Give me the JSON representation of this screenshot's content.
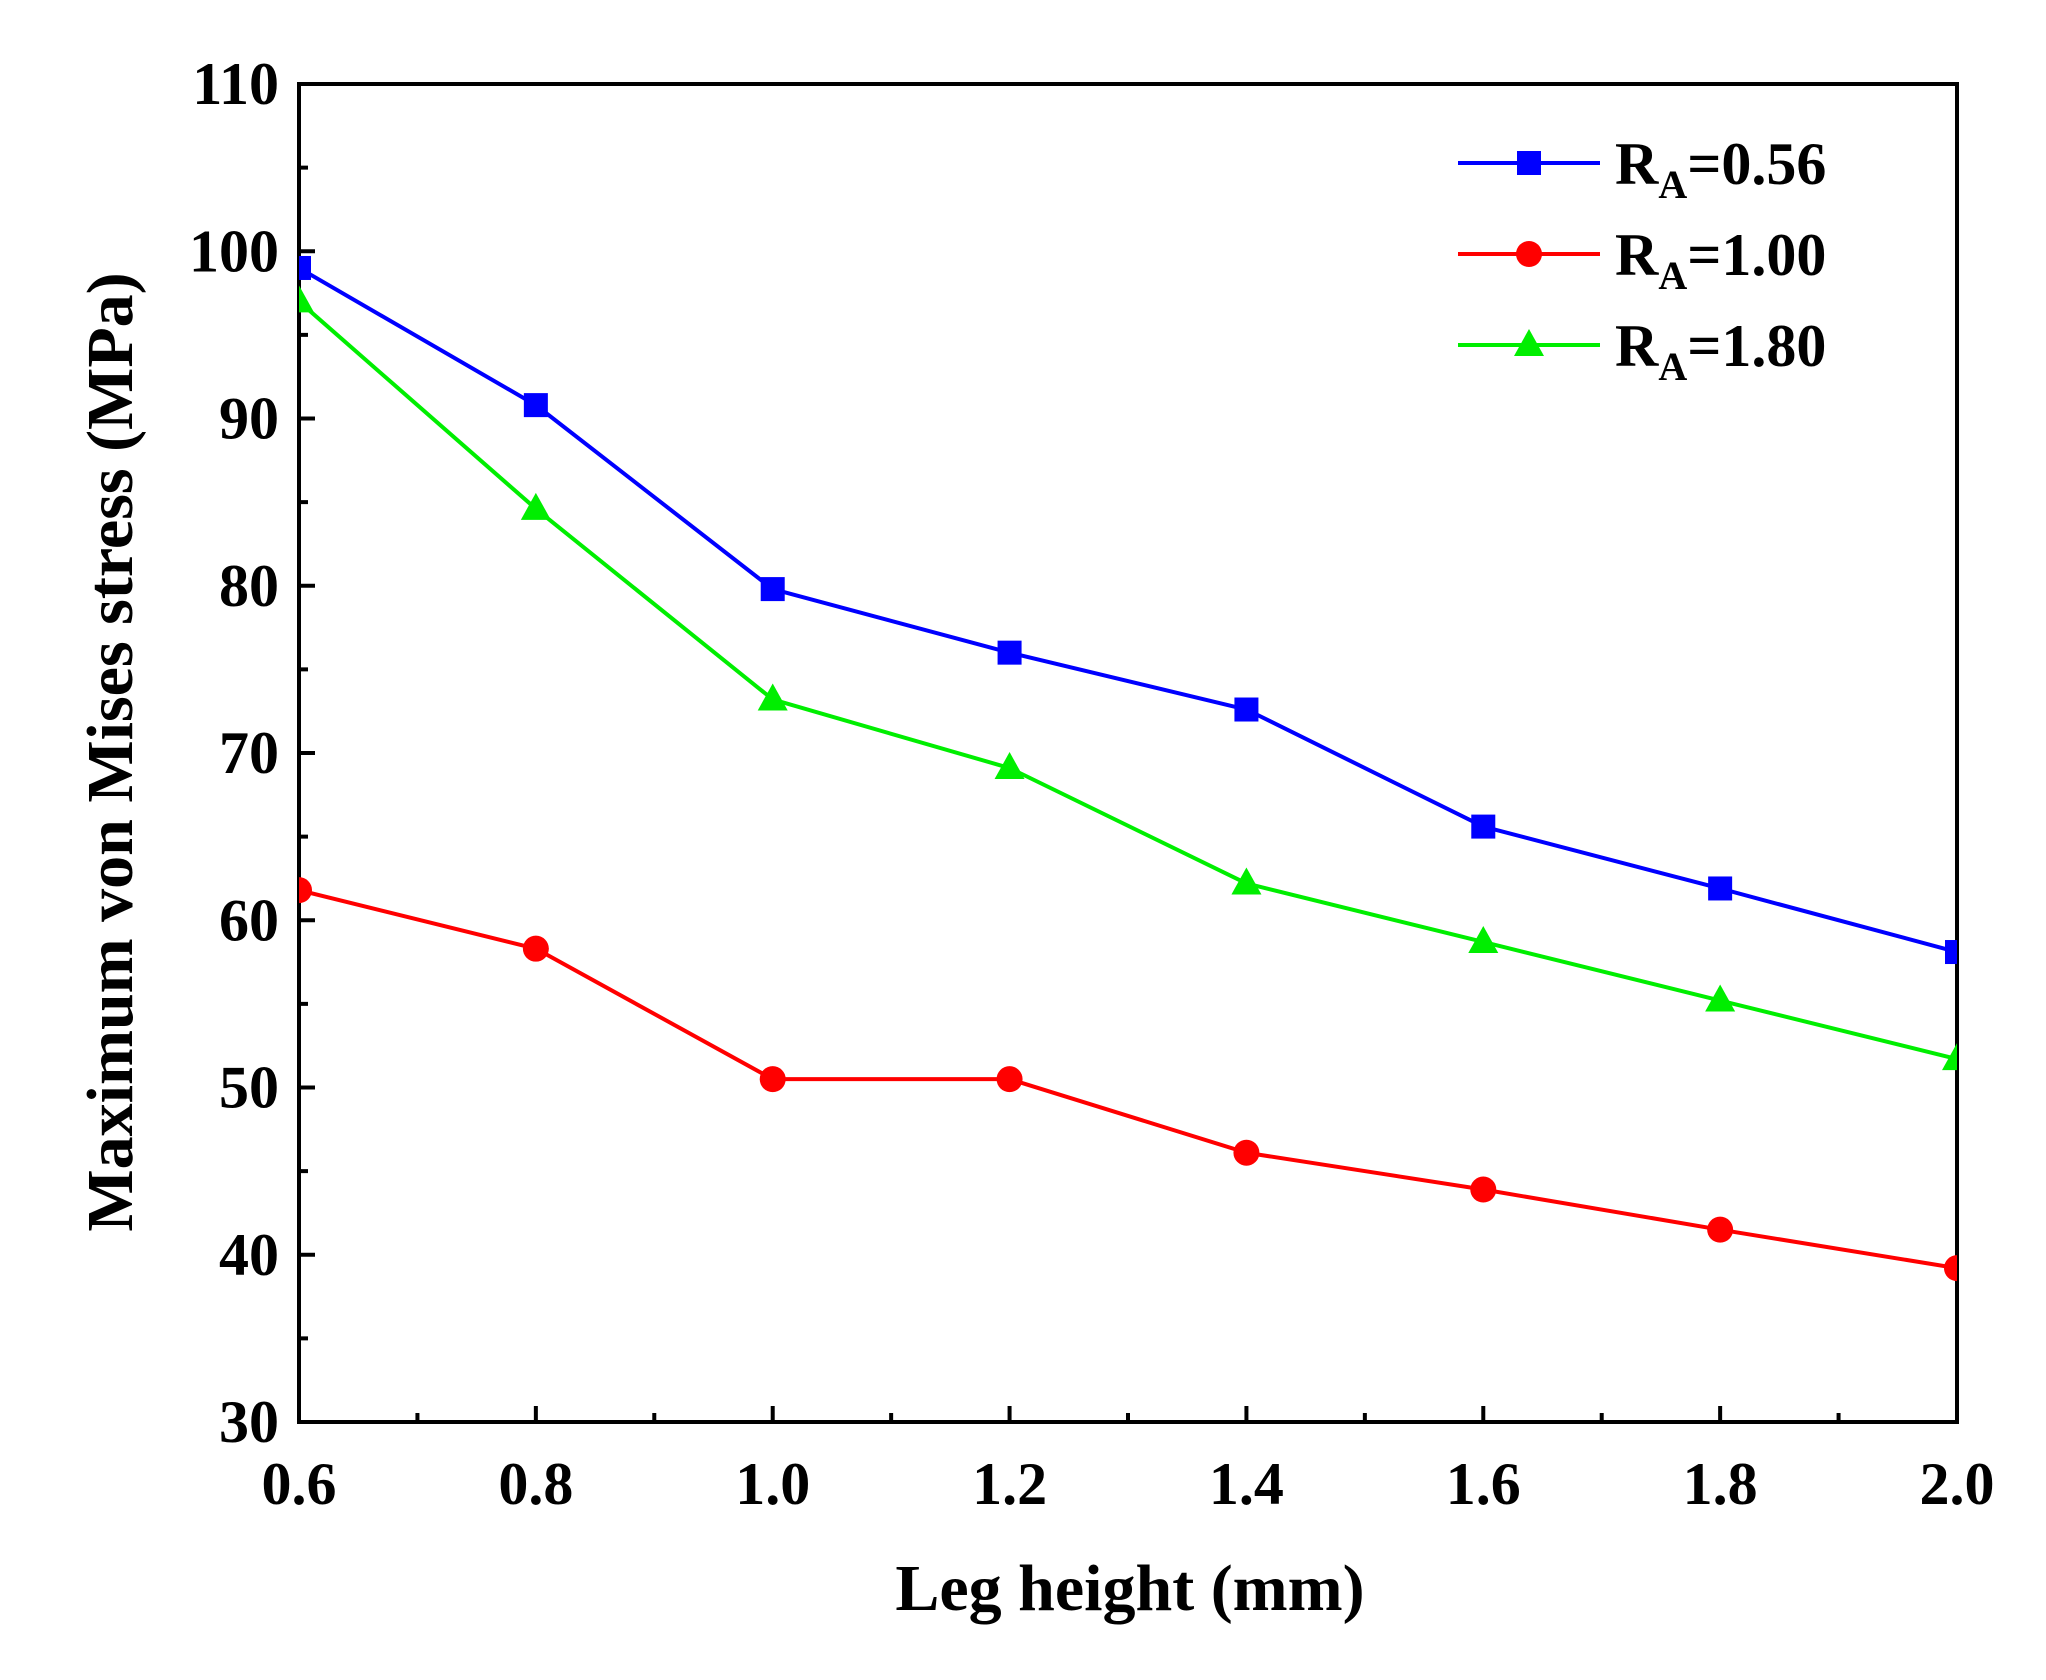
{
  "chart_data": {
    "type": "line",
    "title": "",
    "xlabel": "Leg height (mm)",
    "ylabel": "Maximum von Mises stress (MPa)",
    "xlim": [
      0.6,
      2.0
    ],
    "ylim": [
      30,
      110
    ],
    "x": [
      0.6,
      0.8,
      1.0,
      1.2,
      1.4,
      1.6,
      1.8,
      2.0
    ],
    "x_tick_labels": [
      "0.6",
      "0.8",
      "1.0",
      "1.2",
      "1.4",
      "1.6",
      "1.8",
      "2.0"
    ],
    "y_ticks": [
      30,
      40,
      50,
      60,
      70,
      80,
      90,
      100,
      110
    ],
    "y_tick_labels": [
      "30",
      "40",
      "50",
      "60",
      "70",
      "80",
      "90",
      "100",
      "110"
    ],
    "grid": false,
    "legend_position": "top-right",
    "series": [
      {
        "name": "RA=0.56",
        "label_main": "R",
        "label_sub": "A",
        "label_rest": "=0.56",
        "color": "#0000ff",
        "marker": "square",
        "values": [
          99.0,
          90.8,
          79.8,
          76.0,
          72.6,
          65.6,
          61.9,
          58.1
        ]
      },
      {
        "name": "RA=1.00",
        "label_main": "R",
        "label_sub": "A",
        "label_rest": "=1.00",
        "color": "#ff0000",
        "marker": "circle",
        "values": [
          61.8,
          58.3,
          50.5,
          50.5,
          46.1,
          43.9,
          41.5,
          39.2
        ]
      },
      {
        "name": "RA=1.80",
        "label_main": "R",
        "label_sub": "A",
        "label_rest": "=1.80",
        "color": "#00ee00",
        "marker": "triangle",
        "values": [
          97.0,
          84.6,
          73.2,
          69.1,
          62.2,
          58.7,
          55.2,
          51.7
        ]
      }
    ]
  }
}
